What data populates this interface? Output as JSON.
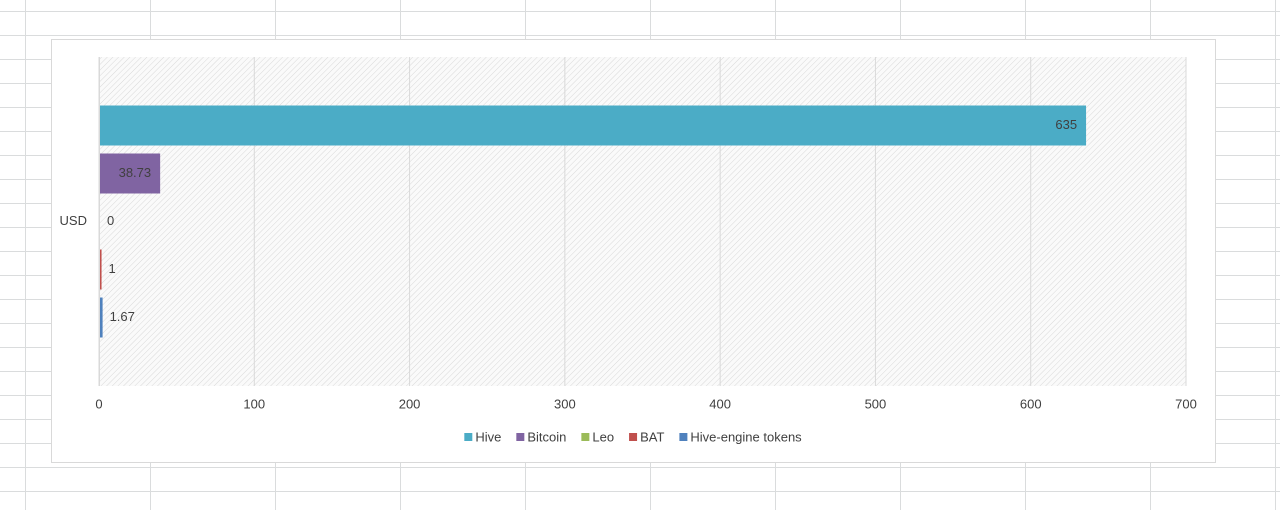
{
  "chart_data": {
    "type": "bar",
    "orientation": "horizontal",
    "categories": [
      "USD"
    ],
    "series": [
      {
        "name": "Hive",
        "color": "#4bacc6",
        "values": [
          635
        ]
      },
      {
        "name": "Bitcoin",
        "color": "#8064a2",
        "values": [
          38.73
        ]
      },
      {
        "name": "Leo",
        "color": "#9bbb59",
        "values": [
          0
        ]
      },
      {
        "name": "BAT",
        "color": "#c0504d",
        "values": [
          1
        ]
      },
      {
        "name": "Hive-engine tokens",
        "color": "#4f81bd",
        "values": [
          1.67
        ]
      }
    ],
    "xlim": [
      0,
      700
    ],
    "xticks": [
      0,
      100,
      200,
      300,
      400,
      500,
      600,
      700
    ],
    "grid": true,
    "legend": "bottom",
    "data_labels": true
  }
}
